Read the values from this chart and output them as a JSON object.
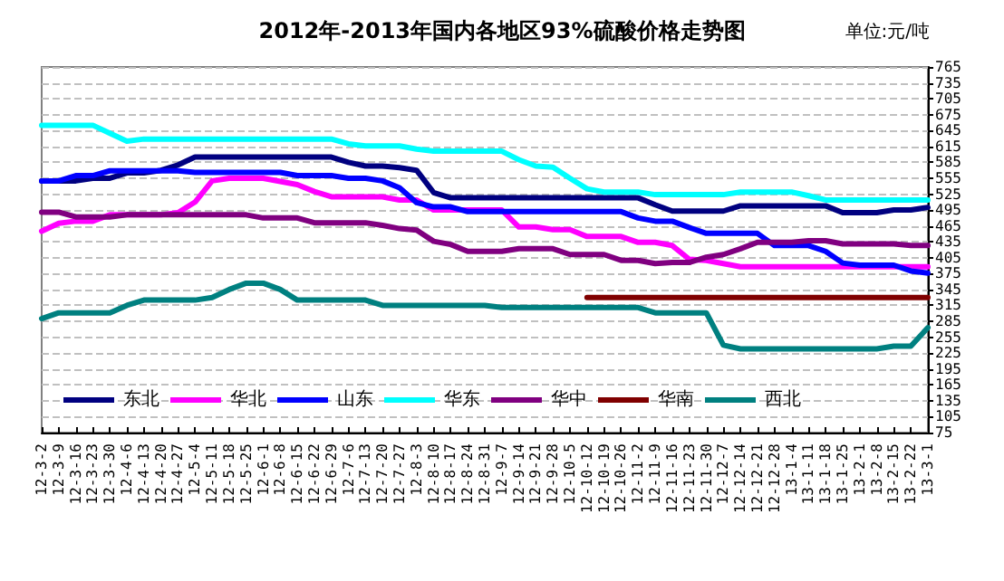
{
  "chart_data": {
    "type": "line",
    "title": "2012年-2013年国内各地区93%硫酸价格走势图",
    "annotations": [
      "单位:元/吨"
    ],
    "categories": [
      "12-3-2",
      "12-3-9",
      "12-3-16",
      "12-3-23",
      "12-3-30",
      "12-4-6",
      "12-4-13",
      "12-4-20",
      "12-4-27",
      "12-5-4",
      "12-5-11",
      "12-5-18",
      "12-5-25",
      "12-6-1",
      "12-6-8",
      "12-6-15",
      "12-6-22",
      "12-6-29",
      "12-7-6",
      "12-7-13",
      "12-7-20",
      "12-7-27",
      "12-8-3",
      "12-8-10",
      "12-8-17",
      "12-8-24",
      "12-8-31",
      "12-9-7",
      "12-9-14",
      "12-9-21",
      "12-9-28",
      "12-10-5",
      "12-10-12",
      "12-10-19",
      "12-10-26",
      "12-11-2",
      "12-11-9",
      "12-11-16",
      "12-11-23",
      "12-11-30",
      "12-12-7",
      "12-12-14",
      "12-12-21",
      "12-12-28",
      "13-1-4",
      "13-1-11",
      "13-1-18",
      "13-1-25",
      "13-2-1",
      "13-2-8",
      "13-2-15",
      "13-2-22",
      "13-3-1"
    ],
    "series": [
      {
        "name": "东北",
        "color": "#000080",
        "values": [
          550,
          550,
          550,
          555,
          555,
          565,
          565,
          570,
          580,
          595,
          595,
          595,
          595,
          595,
          595,
          595,
          595,
          595,
          585,
          578,
          578,
          575,
          570,
          528,
          518,
          518,
          518,
          518,
          518,
          518,
          518,
          518,
          518,
          518,
          518,
          518,
          505,
          493,
          493,
          493,
          493,
          503,
          503,
          503,
          503,
          503,
          503,
          490,
          490,
          490,
          495,
          495,
          500
        ]
      },
      {
        "name": "华北",
        "color": "#ff00ff",
        "values": [
          455,
          470,
          474,
          474,
          486,
          486,
          486,
          486,
          490,
          510,
          550,
          555,
          555,
          555,
          549,
          543,
          530,
          520,
          520,
          520,
          520,
          514,
          514,
          495,
          495,
          495,
          495,
          495,
          463,
          463,
          458,
          458,
          445,
          445,
          445,
          434,
          434,
          428,
          402,
          400,
          394,
          388,
          388,
          388,
          388,
          388,
          388,
          388,
          388,
          388,
          388,
          388,
          388
        ]
      },
      {
        "name": "山东",
        "color": "#0000ff",
        "values": [
          550,
          550,
          560,
          560,
          569,
          569,
          569,
          569,
          569,
          566,
          566,
          566,
          566,
          566,
          566,
          560,
          560,
          560,
          555,
          555,
          550,
          537,
          509,
          501,
          501,
          492,
          492,
          492,
          492,
          492,
          492,
          492,
          492,
          492,
          492,
          480,
          474,
          474,
          462,
          451,
          451,
          451,
          451,
          428,
          428,
          428,
          417,
          395,
          391,
          391,
          391,
          380,
          376
        ]
      },
      {
        "name": "华东",
        "color": "#00ffff",
        "values": [
          655,
          655,
          655,
          655,
          640,
          625,
          629,
          629,
          629,
          629,
          629,
          629,
          629,
          629,
          629,
          629,
          629,
          629,
          620,
          616,
          616,
          616,
          610,
          606,
          606,
          606,
          606,
          606,
          590,
          578,
          576,
          555,
          535,
          529,
          529,
          529,
          524,
          524,
          524,
          524,
          524,
          529,
          529,
          529,
          529,
          522,
          514,
          514,
          514,
          514,
          514,
          514,
          514
        ]
      },
      {
        "name": "华中",
        "color": "#800080",
        "values": [
          491,
          491,
          482,
          482,
          482,
          486,
          486,
          486,
          486,
          486,
          486,
          486,
          486,
          480,
          480,
          480,
          471,
          471,
          471,
          471,
          466,
          460,
          457,
          436,
          430,
          417,
          417,
          417,
          422,
          422,
          422,
          411,
          411,
          411,
          400,
          400,
          394,
          396,
          396,
          406,
          411,
          422,
          434,
          434,
          434,
          437,
          437,
          431,
          431,
          431,
          431,
          428,
          428
        ]
      },
      {
        "name": "华南",
        "color": "#800000",
        "values": [
          null,
          null,
          null,
          null,
          null,
          null,
          null,
          null,
          null,
          null,
          null,
          null,
          null,
          null,
          null,
          null,
          null,
          null,
          null,
          null,
          null,
          null,
          null,
          null,
          null,
          null,
          null,
          null,
          null,
          null,
          null,
          null,
          330,
          330,
          330,
          330,
          330,
          330,
          330,
          330,
          330,
          330,
          330,
          330,
          330,
          330,
          330,
          330,
          330,
          330,
          330,
          330,
          330
        ]
      },
      {
        "name": "西北",
        "color": "#008080",
        "values": [
          290,
          301,
          301,
          301,
          301,
          315,
          325,
          325,
          325,
          325,
          330,
          345,
          357,
          357,
          345,
          325,
          325,
          325,
          325,
          325,
          315,
          315,
          315,
          315,
          315,
          315,
          315,
          311,
          311,
          311,
          311,
          311,
          311,
          311,
          311,
          311,
          301,
          301,
          301,
          301,
          240,
          233,
          233,
          233,
          233,
          233,
          233,
          233,
          233,
          233,
          238,
          238,
          273
        ]
      }
    ],
    "ylim": [
      75,
      765
    ],
    "yticks": [
      75,
      105,
      135,
      165,
      195,
      225,
      255,
      285,
      315,
      345,
      375,
      405,
      435,
      465,
      495,
      525,
      555,
      585,
      615,
      645,
      675,
      705,
      735,
      765
    ],
    "grid": "y",
    "legend": "bottom",
    "marker": "none",
    "line_style": "solid"
  }
}
